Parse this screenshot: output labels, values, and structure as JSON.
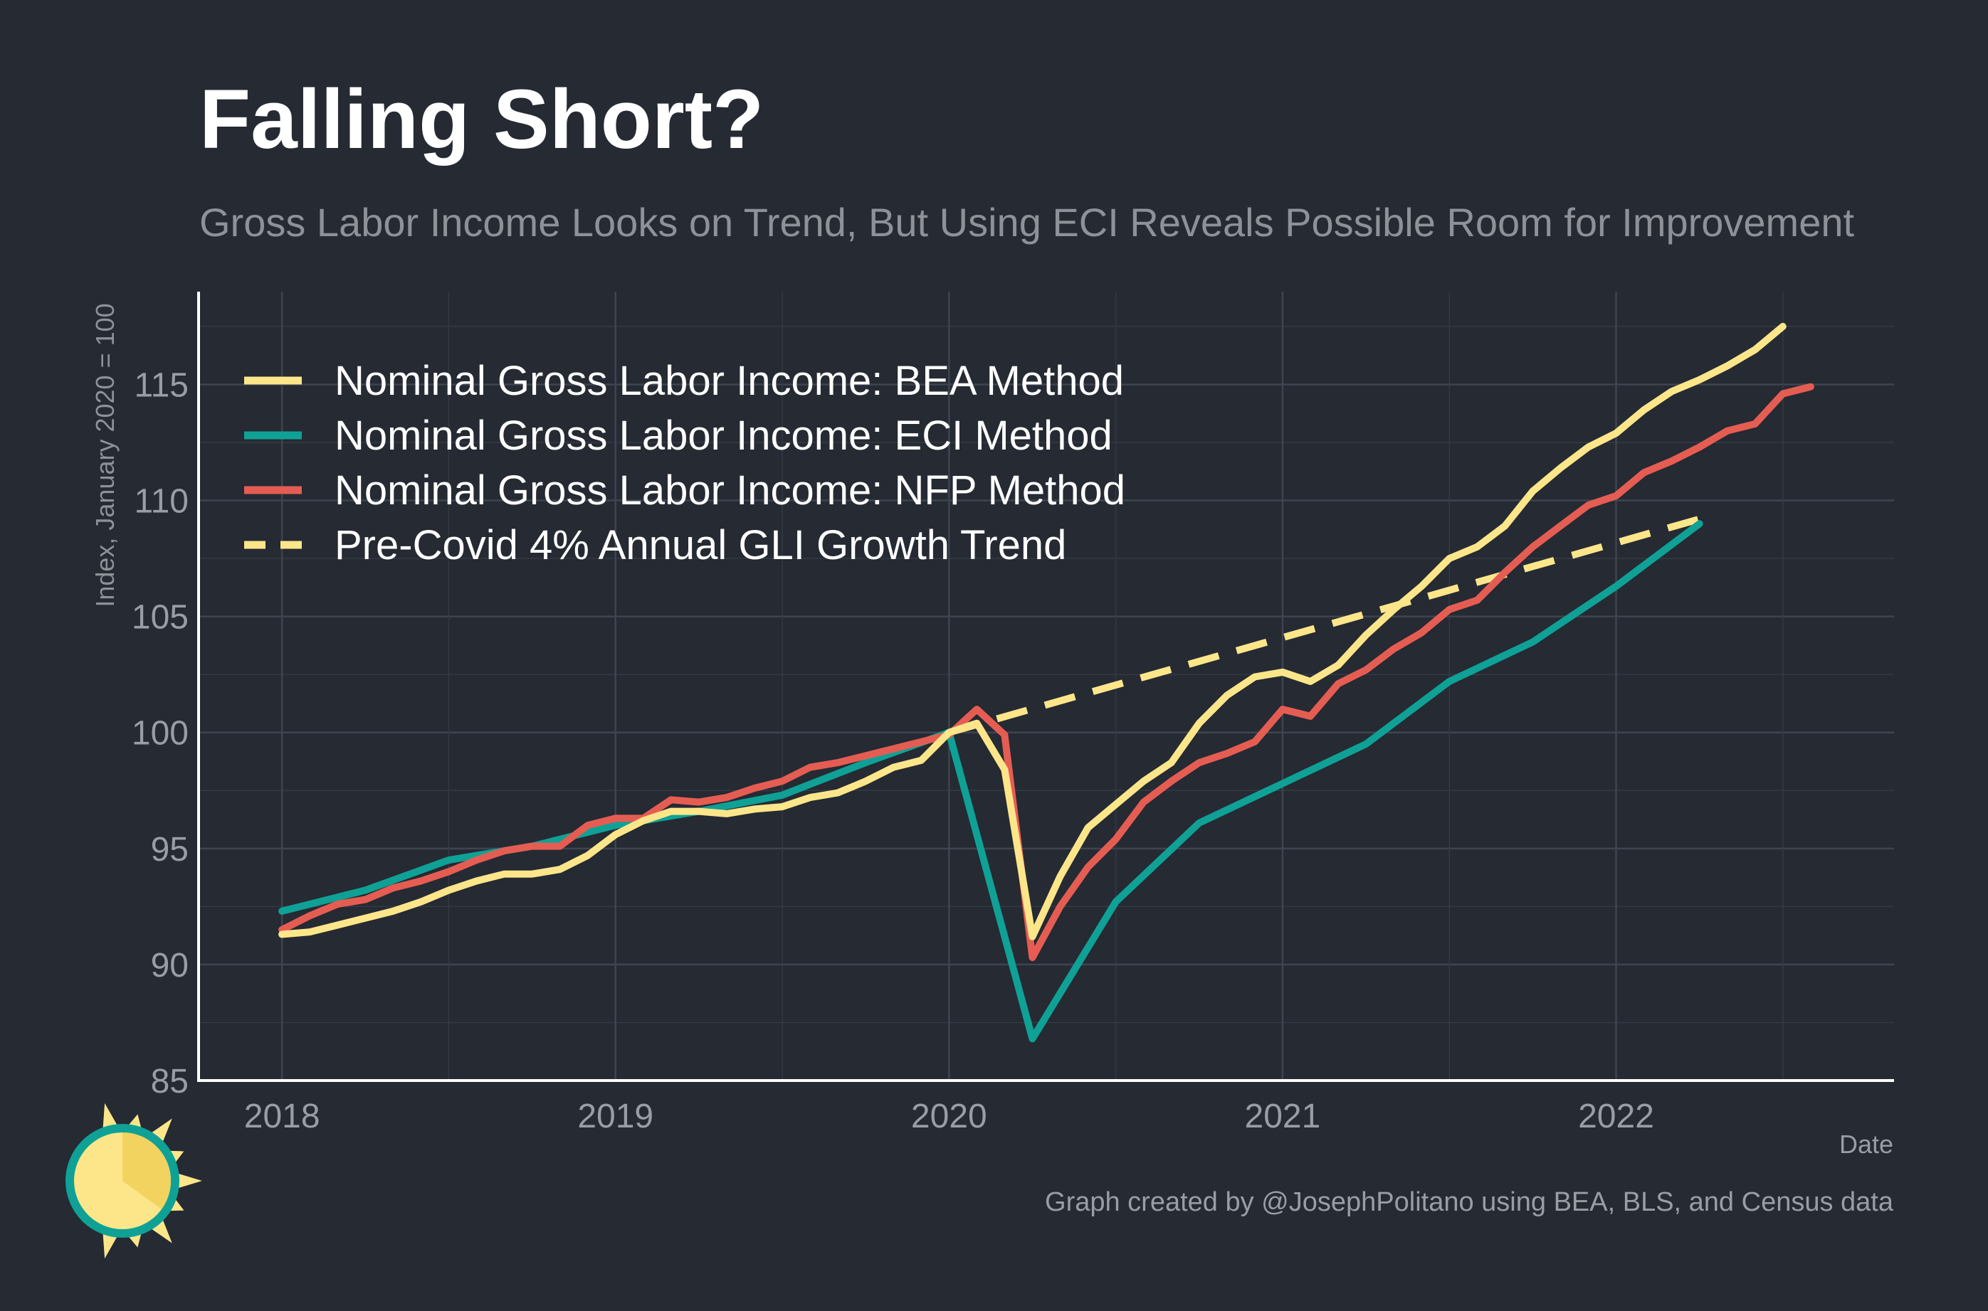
{
  "chart_data": {
    "type": "line",
    "title": "Falling Short?",
    "subtitle": "Gross Labor Income Looks on Trend, But Using ECI Reveals Possible Room for Improvement",
    "xlabel": "Date",
    "ylabel": "Index, January 2020 = 100",
    "xlim": [
      "2017-10",
      "2022-11"
    ],
    "ylim": [
      85,
      119
    ],
    "x_ticks": [
      {
        "label": "2018",
        "value": "2018-01"
      },
      {
        "label": "2019",
        "value": "2019-01"
      },
      {
        "label": "2020",
        "value": "2020-01"
      },
      {
        "label": "2021",
        "value": "2021-01"
      },
      {
        "label": "2022",
        "value": "2022-01"
      }
    ],
    "y_ticks": [
      85,
      90,
      95,
      100,
      105,
      110,
      115
    ],
    "grid": true,
    "legend_position": "top-left",
    "caption": "Graph created by @JosephPolitano using BEA, BLS, and Census data",
    "series": [
      {
        "name": "Nominal Gross Labor Income: BEA Method",
        "color": "#fde68a",
        "dash": false,
        "points": [
          [
            "2018-01",
            91.3
          ],
          [
            "2018-02",
            91.4
          ],
          [
            "2018-03",
            91.7
          ],
          [
            "2018-04",
            92.0
          ],
          [
            "2018-05",
            92.3
          ],
          [
            "2018-06",
            92.7
          ],
          [
            "2018-07",
            93.2
          ],
          [
            "2018-08",
            93.6
          ],
          [
            "2018-09",
            93.9
          ],
          [
            "2018-10",
            93.9
          ],
          [
            "2018-11",
            94.1
          ],
          [
            "2018-12",
            94.7
          ],
          [
            "2019-01",
            95.6
          ],
          [
            "2019-02",
            96.2
          ],
          [
            "2019-03",
            96.6
          ],
          [
            "2019-04",
            96.6
          ],
          [
            "2019-05",
            96.5
          ],
          [
            "2019-06",
            96.7
          ],
          [
            "2019-07",
            96.8
          ],
          [
            "2019-08",
            97.2
          ],
          [
            "2019-09",
            97.4
          ],
          [
            "2019-10",
            97.9
          ],
          [
            "2019-11",
            98.5
          ],
          [
            "2019-12",
            98.8
          ],
          [
            "2020-01",
            100.0
          ],
          [
            "2020-02",
            100.4
          ],
          [
            "2020-03",
            98.4
          ],
          [
            "2020-04",
            91.2
          ],
          [
            "2020-05",
            93.8
          ],
          [
            "2020-06",
            95.9
          ],
          [
            "2020-07",
            96.9
          ],
          [
            "2020-08",
            97.9
          ],
          [
            "2020-09",
            98.7
          ],
          [
            "2020-10",
            100.4
          ],
          [
            "2020-11",
            101.6
          ],
          [
            "2020-12",
            102.4
          ],
          [
            "2021-01",
            102.6
          ],
          [
            "2021-02",
            102.2
          ],
          [
            "2021-03",
            102.9
          ],
          [
            "2021-04",
            104.2
          ],
          [
            "2021-05",
            105.3
          ],
          [
            "2021-06",
            106.3
          ],
          [
            "2021-07",
            107.5
          ],
          [
            "2021-08",
            108.0
          ],
          [
            "2021-09",
            108.9
          ],
          [
            "2021-10",
            110.4
          ],
          [
            "2021-11",
            111.4
          ],
          [
            "2021-12",
            112.3
          ],
          [
            "2022-01",
            112.9
          ],
          [
            "2022-02",
            113.9
          ],
          [
            "2022-03",
            114.7
          ],
          [
            "2022-04",
            115.2
          ],
          [
            "2022-05",
            115.8
          ],
          [
            "2022-06",
            116.5
          ],
          [
            "2022-07",
            117.5
          ]
        ]
      },
      {
        "name": "Nominal Gross Labor Income: ECI Method",
        "color": "#0fa196",
        "dash": false,
        "points": [
          [
            "2018-01",
            92.3
          ],
          [
            "2018-04",
            93.2
          ],
          [
            "2018-07",
            94.5
          ],
          [
            "2018-10",
            95.1
          ],
          [
            "2019-01",
            96.0
          ],
          [
            "2019-04",
            96.6
          ],
          [
            "2019-07",
            97.3
          ],
          [
            "2019-10",
            98.7
          ],
          [
            "2020-01",
            100.0
          ],
          [
            "2020-04",
            86.8
          ],
          [
            "2020-07",
            92.7
          ],
          [
            "2020-10",
            96.1
          ],
          [
            "2021-01",
            97.8
          ],
          [
            "2021-04",
            99.5
          ],
          [
            "2021-07",
            102.2
          ],
          [
            "2021-10",
            103.9
          ],
          [
            "2022-01",
            106.3
          ],
          [
            "2022-04",
            109.0
          ]
        ]
      },
      {
        "name": "Nominal Gross Labor Income: NFP Method",
        "color": "#e55d52",
        "dash": false,
        "points": [
          [
            "2018-01",
            91.5
          ],
          [
            "2018-02",
            92.1
          ],
          [
            "2018-03",
            92.6
          ],
          [
            "2018-04",
            92.8
          ],
          [
            "2018-05",
            93.3
          ],
          [
            "2018-06",
            93.6
          ],
          [
            "2018-07",
            94.0
          ],
          [
            "2018-08",
            94.5
          ],
          [
            "2018-09",
            94.9
          ],
          [
            "2018-10",
            95.1
          ],
          [
            "2018-11",
            95.1
          ],
          [
            "2018-12",
            96.0
          ],
          [
            "2019-01",
            96.3
          ],
          [
            "2019-02",
            96.3
          ],
          [
            "2019-03",
            97.1
          ],
          [
            "2019-04",
            97.0
          ],
          [
            "2019-05",
            97.2
          ],
          [
            "2019-06",
            97.6
          ],
          [
            "2019-07",
            97.9
          ],
          [
            "2019-08",
            98.5
          ],
          [
            "2019-09",
            98.7
          ],
          [
            "2019-10",
            99.0
          ],
          [
            "2019-11",
            99.3
          ],
          [
            "2019-12",
            99.6
          ],
          [
            "2020-01",
            99.9
          ],
          [
            "2020-02",
            101.0
          ],
          [
            "2020-03",
            99.9
          ],
          [
            "2020-04",
            90.3
          ],
          [
            "2020-05",
            92.5
          ],
          [
            "2020-06",
            94.2
          ],
          [
            "2020-07",
            95.4
          ],
          [
            "2020-08",
            97.0
          ],
          [
            "2020-09",
            97.9
          ],
          [
            "2020-10",
            98.7
          ],
          [
            "2020-11",
            99.1
          ],
          [
            "2020-12",
            99.6
          ],
          [
            "2021-01",
            101.0
          ],
          [
            "2021-02",
            100.7
          ],
          [
            "2021-03",
            102.1
          ],
          [
            "2021-04",
            102.7
          ],
          [
            "2021-05",
            103.6
          ],
          [
            "2021-06",
            104.3
          ],
          [
            "2021-07",
            105.3
          ],
          [
            "2021-08",
            105.7
          ],
          [
            "2021-09",
            106.9
          ],
          [
            "2021-10",
            108.0
          ],
          [
            "2021-11",
            108.9
          ],
          [
            "2021-12",
            109.8
          ],
          [
            "2022-01",
            110.2
          ],
          [
            "2022-02",
            111.2
          ],
          [
            "2022-03",
            111.7
          ],
          [
            "2022-04",
            112.3
          ],
          [
            "2022-05",
            113.0
          ],
          [
            "2022-06",
            113.3
          ],
          [
            "2022-07",
            114.6
          ],
          [
            "2022-08",
            114.9
          ]
        ]
      },
      {
        "name": "Pre-Covid 4% Annual GLI Growth Trend",
        "color": "#fde68a",
        "dash": true,
        "points": [
          [
            "2020-01",
            100.0
          ],
          [
            "2022-04",
            109.2
          ]
        ]
      }
    ]
  }
}
